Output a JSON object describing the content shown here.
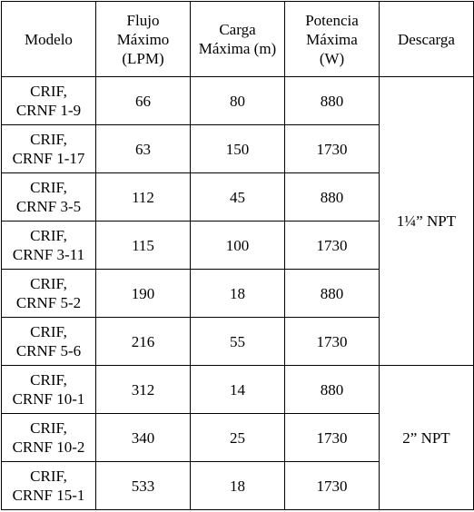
{
  "table": {
    "header": [
      [
        "Modelo"
      ],
      [
        "Flujo",
        "Máximo",
        "(LPM)"
      ],
      [
        "Carga",
        "Máxima (m)"
      ],
      [
        "Potencia",
        "Máxima",
        "(W)"
      ],
      [
        "Descarga"
      ]
    ],
    "rows": [
      [
        [
          "CRIF,",
          "CRNF 1-9"
        ],
        66,
        80,
        880
      ],
      [
        [
          "CRIF,",
          "CRNF 1-17"
        ],
        63,
        150,
        1730
      ],
      [
        [
          "CRIF,",
          "CRNF 3-5"
        ],
        112,
        45,
        880
      ],
      [
        [
          "CRIF,",
          "CRNF 3-11"
        ],
        115,
        100,
        1730
      ],
      [
        [
          "CRIF,",
          "CRNF 5-2"
        ],
        190,
        18,
        880
      ],
      [
        [
          "CRIF,",
          "CRNF 5-6"
        ],
        216,
        55,
        1730
      ],
      [
        [
          "CRIF,",
          "CRNF 10-1"
        ],
        312,
        14,
        880
      ],
      [
        [
          "CRIF,",
          "CRNF 10-2"
        ],
        340,
        25,
        1730
      ],
      [
        [
          "CRIF,",
          "CRNF 15-1"
        ],
        533,
        18,
        1730
      ]
    ],
    "descarga": [
      {
        "label": "1¼” NPT",
        "rows": 6
      },
      {
        "label": "2” NPT",
        "rows": 3
      }
    ]
  }
}
